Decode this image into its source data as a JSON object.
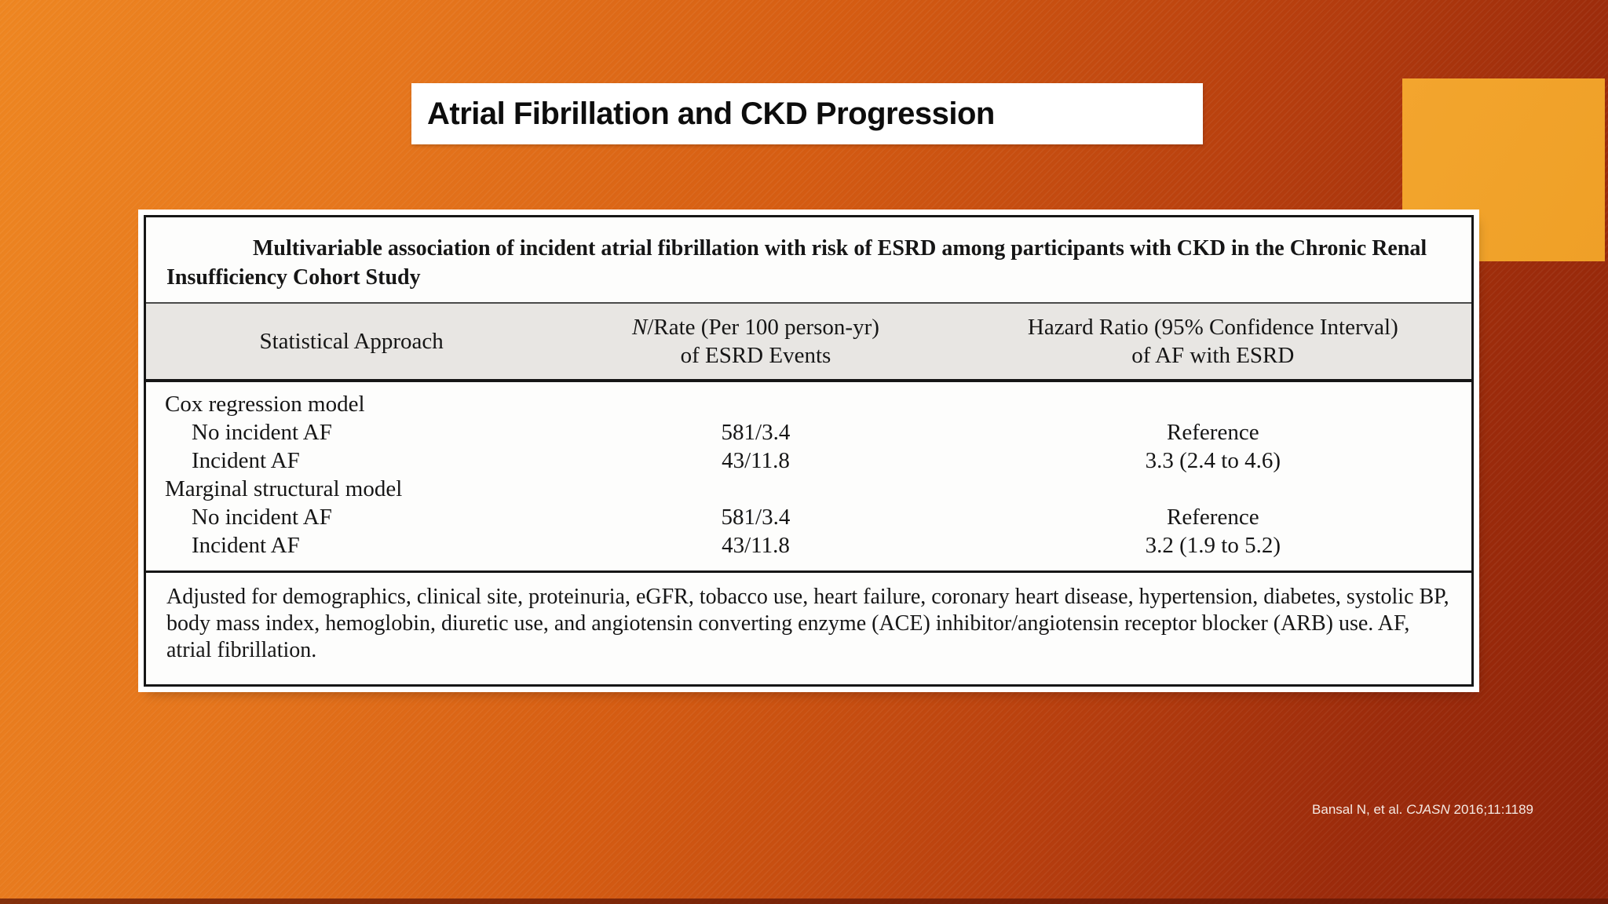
{
  "slide": {
    "title": "Atrial Fibrillation and CKD Progression",
    "citation": {
      "authors": "Bansal N, et al.",
      "journal": "CJASN",
      "reference": "2016;11:1189"
    },
    "colors": {
      "background_top_left": "#ee8621",
      "background_bottom_right": "#8e2309",
      "accent_rectangle": "#f2a32b",
      "table_header_band": "#e8e6e3",
      "title_background": "#ffffff",
      "table_text": "#161616",
      "citation_text": "#f4e9e3"
    }
  },
  "table": {
    "caption": "Multivariable association of incident atrial fibrillation with risk of ESRD among participants with CKD in the Chronic Renal Insufficiency Cohort Study",
    "columns": {
      "col1": {
        "label": "Statistical Approach"
      },
      "col2": {
        "line1_italic": "N",
        "line1_rest": "/Rate (Per 100 person-yr)",
        "line2": "of ESRD Events"
      },
      "col3": {
        "line1": "Hazard Ratio (95% Confidence Interval)",
        "line2": "of AF with ESRD"
      }
    },
    "rows": [
      {
        "label": "Cox regression model",
        "rate": "",
        "hr": ""
      },
      {
        "label": "No incident AF",
        "rate": "581/3.4",
        "hr": "Reference"
      },
      {
        "label": "Incident AF",
        "rate": "43/11.8",
        "hr": "3.3 (2.4 to 4.6)"
      },
      {
        "label": "Marginal structural model",
        "rate": "",
        "hr": ""
      },
      {
        "label": "No incident AF",
        "rate": "581/3.4",
        "hr": "Reference"
      },
      {
        "label": "Incident AF",
        "rate": "43/11.8",
        "hr": "3.2 (1.9 to 5.2)"
      }
    ],
    "footnote": "Adjusted for demographics, clinical site, proteinuria, eGFR, tobacco use, heart failure, coronary heart disease, hypertension, diabetes, systolic BP, body mass index, hemoglobin, diuretic use, and angiotensin converting enzyme (ACE) inhibitor/angiotensin receptor blocker (ARB) use. AF, atrial fibrillation."
  }
}
